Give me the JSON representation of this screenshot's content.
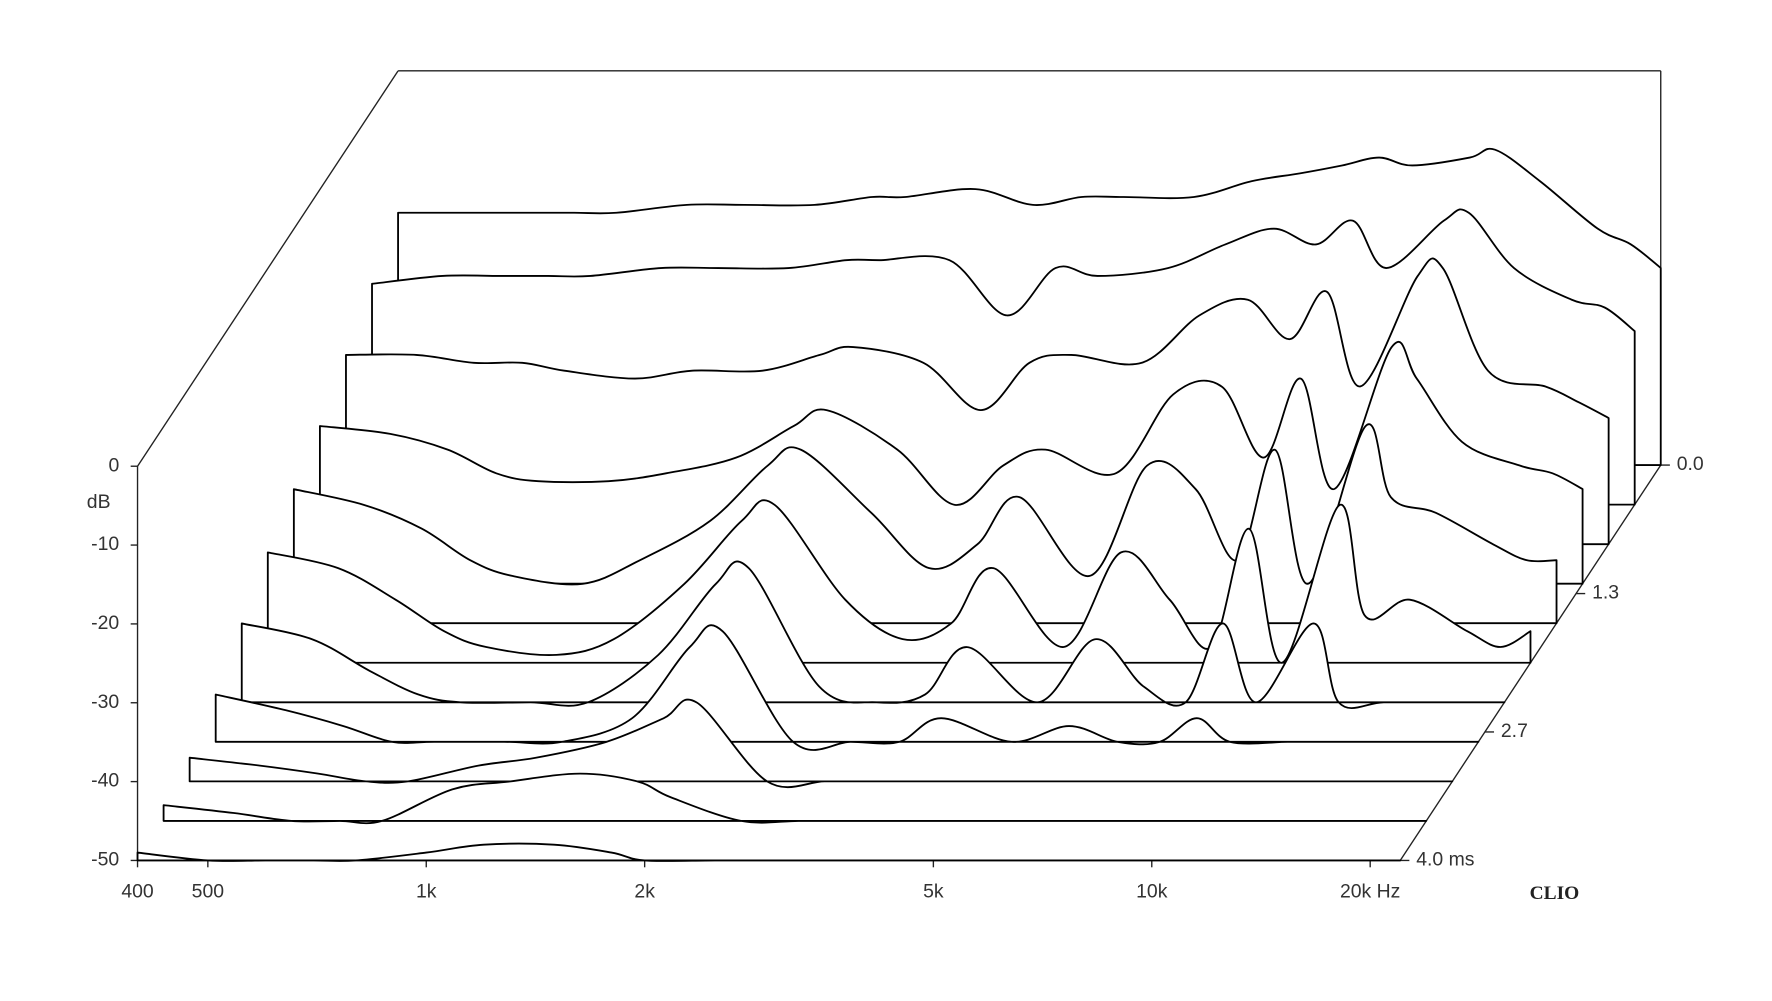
{
  "chart_data": {
    "type": "waterfall",
    "y_label": "dB",
    "brand": "CLIO",
    "log_x": true,
    "line_color": "#000000",
    "fill_color": "#ffffff",
    "xlim": [
      400,
      22000
    ],
    "xticks": [
      400,
      500,
      {
        "value": 1000,
        "label": "1k"
      },
      {
        "value": 2000,
        "label": "2k"
      },
      {
        "value": 5000,
        "label": "5k"
      },
      {
        "value": 10000,
        "label": "10k"
      },
      {
        "value": 20000,
        "label": "20k Hz"
      }
    ],
    "ylim": [
      -50,
      0
    ],
    "yticks": [
      0,
      -10,
      -20,
      -30,
      -40,
      -50
    ],
    "zlim": [
      0,
      4
    ],
    "zticks": [
      {
        "value": 0,
        "label": "0.0"
      },
      {
        "value": 1.3,
        "label": "1.3"
      },
      {
        "value": 2.7,
        "label": "2.7"
      },
      {
        "value": 4,
        "label": "4.0 ms"
      }
    ],
    "x": [
      400,
      500,
      600,
      700,
      800,
      1000,
      1200,
      1500,
      1800,
      2000,
      2500,
      3000,
      3500,
      4000,
      5000,
      6000,
      7000,
      8000,
      9000,
      10000,
      12000,
      13000,
      15000,
      18000,
      20000,
      22000
    ],
    "z": [
      0,
      0.4,
      0.8,
      1.2,
      1.6,
      2.0,
      2.4,
      2.8,
      3.2,
      3.6,
      4.0
    ],
    "series": [
      {
        "values": [
          -18,
          -18,
          -18,
          -18,
          -18,
          -17,
          -17,
          -17,
          -16,
          -16,
          -15,
          -17,
          -16,
          -16,
          -16,
          -14,
          -13,
          -12,
          -11,
          -12,
          -11,
          -10,
          -14,
          -20,
          -22,
          -25
        ]
      },
      {
        "values": [
          -22,
          -21,
          -21,
          -21,
          -21,
          -20,
          -20,
          -20,
          -19,
          -19,
          -19,
          -26,
          -20,
          -21,
          -20,
          -17,
          -15,
          -17,
          -14,
          -20,
          -14,
          -13,
          -20,
          -24,
          -25,
          -28
        ]
      },
      {
        "values": [
          -26,
          -26,
          -27,
          -27,
          -28,
          -29,
          -28,
          -28,
          -26,
          -25,
          -27,
          -33,
          -27,
          -26,
          -27,
          -21,
          -19,
          -24,
          -18,
          -30,
          -16,
          -15,
          -28,
          -30,
          -32,
          -34
        ]
      },
      {
        "values": [
          -30,
          -31,
          -33,
          -36,
          -37,
          -37,
          -36,
          -34,
          -30,
          -28,
          -33,
          -40,
          -35,
          -33,
          -36,
          -26,
          -25,
          -34,
          -24,
          -38,
          -20,
          -24,
          -32,
          -35,
          -36,
          -38
        ]
      },
      {
        "values": [
          -33,
          -35,
          -38,
          -42,
          -44,
          -45,
          -42,
          -37,
          -30,
          -28,
          -36,
          -43,
          -40,
          -34,
          -44,
          -30,
          -33,
          -42,
          -28,
          -45,
          -25,
          -34,
          -36,
          -40,
          -42,
          -42
        ]
      },
      {
        "values": [
          -36,
          -38,
          -42,
          -46,
          -48,
          -49,
          -47,
          -40,
          -32,
          -30,
          -42,
          -47,
          -45,
          -38,
          -48,
          -36,
          -42,
          -48,
          -33,
          -50,
          -30,
          -44,
          -42,
          -46,
          -48,
          -46
        ]
      },
      {
        "values": [
          -40,
          -42,
          -46,
          -49,
          -50,
          -50,
          -50,
          -44,
          -35,
          -33,
          -48,
          -50,
          -49,
          -43,
          -50,
          -42,
          -48,
          -50,
          -40,
          -50,
          -40,
          -50,
          -50,
          -50,
          -50,
          -50
        ]
      },
      {
        "values": [
          -44,
          -46,
          -48,
          -50,
          -50,
          -50,
          -50,
          -47,
          -38,
          -36,
          -50,
          -50,
          -50,
          -47,
          -50,
          -48,
          -50,
          -50,
          -47,
          -50,
          -50,
          -50,
          -50,
          -50,
          -50,
          -50
        ]
      },
      {
        "values": [
          -47,
          -48,
          -49,
          -50,
          -50,
          -48,
          -47,
          -45,
          -42,
          -40,
          -50,
          -50,
          -50,
          -50,
          -50,
          -50,
          -50,
          -50,
          -50,
          -50,
          -50,
          -50,
          -50,
          -50,
          -50,
          -50
        ]
      },
      {
        "values": [
          -48,
          -49,
          -50,
          -50,
          -50,
          -46,
          -45,
          -44,
          -45,
          -47,
          -50,
          -50,
          -50,
          -50,
          -50,
          -50,
          -50,
          -50,
          -50,
          -50,
          -50,
          -50,
          -50,
          -50,
          -50,
          -50
        ]
      },
      {
        "values": [
          -49,
          -50,
          -50,
          -50,
          -50,
          -49,
          -48,
          -48,
          -49,
          -50,
          -50,
          -50,
          -50,
          -50,
          -50,
          -50,
          -50,
          -50,
          -50,
          -50,
          -50,
          -50,
          -50,
          -50,
          -50,
          -50
        ]
      }
    ]
  }
}
